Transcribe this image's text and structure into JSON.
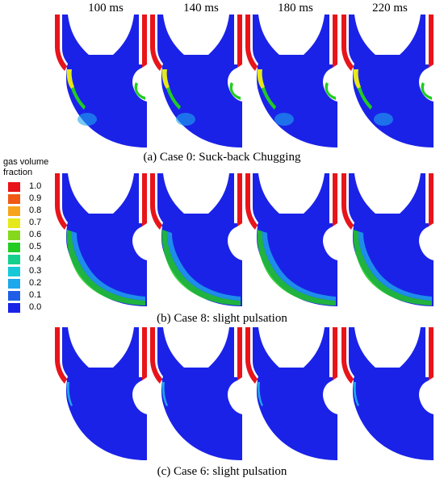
{
  "time_labels": [
    "100 ms",
    "140 ms",
    "180 ms",
    "220 ms"
  ],
  "captions": {
    "a": "(a) Case 0: Suck-back Chugging",
    "b": "(b) Case 8: slight pulsation",
    "c": "(c) Case 6: slight pulsation"
  },
  "legend": {
    "title": "gas volume fraction",
    "levels": [
      {
        "label": "1.0",
        "color": "#e8141a"
      },
      {
        "label": "0.9",
        "color": "#f05a14"
      },
      {
        "label": "0.8",
        "color": "#f7a41c"
      },
      {
        "label": "0.7",
        "color": "#e6e81a"
      },
      {
        "label": "0.6",
        "color": "#86d81c"
      },
      {
        "label": "0.5",
        "color": "#22cc22"
      },
      {
        "label": "0.4",
        "color": "#14d08c"
      },
      {
        "label": "0.3",
        "color": "#17c8d8"
      },
      {
        "label": "0.2",
        "color": "#1fa7ec"
      },
      {
        "label": "0.1",
        "color": "#1f5fe6"
      },
      {
        "label": "0.0",
        "color": "#1a22e8"
      }
    ]
  },
  "colors": {
    "liquid": "#1a22e8",
    "pipe_wall": "#e8141a",
    "interface_light": "#1fa7ec",
    "interface_green": "#22cc22",
    "interface_yellow": "#e6e81a"
  }
}
